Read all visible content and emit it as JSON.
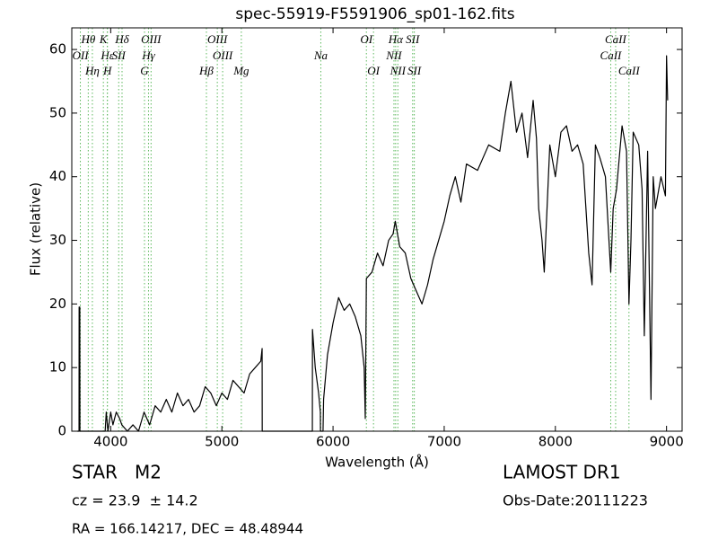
{
  "chart_data": {
    "type": "line",
    "title": "spec-55919-F5591906_sp01-162.fits",
    "x_label": "Wavelength (Å)",
    "y_label": "Flux (relative)",
    "xlim": [
      3650,
      9140
    ],
    "ylim": [
      0,
      63.4
    ],
    "xticks": [
      4000,
      5000,
      6000,
      7000,
      8000,
      9000
    ],
    "yticks": [
      0,
      10,
      20,
      30,
      40,
      50,
      60
    ],
    "series": [
      {
        "color": "#000000",
        "x": [
          3700,
          3715,
          3716,
          3722,
          3723,
          3950,
          3960,
          3975,
          4000,
          4020,
          4050,
          4080,
          4100,
          4150,
          4200,
          4250,
          4300,
          4350,
          4400,
          4450,
          4500,
          4550,
          4600,
          4650,
          4700,
          4750,
          4800,
          4850,
          4900,
          4950,
          5000,
          5050,
          5100,
          5150,
          5200,
          5250,
          5300,
          5350,
          5362,
          5363,
          5814,
          5815,
          5840,
          5870,
          5886,
          5887,
          5910,
          5915,
          5950,
          6000,
          6050,
          6100,
          6150,
          6200,
          6250,
          6280,
          6290,
          6300,
          6350,
          6400,
          6450,
          6500,
          6540,
          6560,
          6600,
          6650,
          6700,
          6750,
          6800,
          6850,
          6900,
          6950,
          7000,
          7050,
          7100,
          7150,
          7200,
          7300,
          7400,
          7500,
          7550,
          7600,
          7650,
          7700,
          7750,
          7800,
          7830,
          7850,
          7880,
          7900,
          7950,
          8000,
          8050,
          8100,
          8150,
          8200,
          8250,
          8300,
          8330,
          8360,
          8400,
          8450,
          8498,
          8520,
          8550,
          8600,
          8640,
          8662,
          8680,
          8700,
          8750,
          8780,
          8800,
          8830,
          8860,
          8880,
          8900,
          8950,
          8990,
          9000,
          9010
        ],
        "values": [
          0,
          0,
          19.5,
          19.5,
          0,
          0,
          3,
          0,
          3,
          1,
          3,
          2,
          1,
          0,
          1,
          0,
          3,
          1,
          4,
          3,
          5,
          3,
          6,
          4,
          5,
          3,
          4,
          7,
          6,
          4,
          6,
          5,
          8,
          7,
          6,
          9,
          10,
          11,
          13,
          0,
          0,
          16,
          10,
          6,
          3,
          0,
          0,
          5,
          12,
          17,
          21,
          19,
          20,
          18,
          15,
          10,
          2,
          24,
          25,
          28,
          26,
          30,
          31,
          33,
          29,
          28,
          24,
          22,
          20,
          23,
          27,
          30,
          33,
          37,
          40,
          36,
          42,
          41,
          45,
          44,
          50,
          55,
          47,
          50,
          43,
          52,
          46,
          35,
          30,
          25,
          45,
          40,
          47,
          48,
          44,
          45,
          42,
          28,
          23,
          45,
          43,
          40,
          25,
          35,
          38,
          48,
          44,
          20,
          30,
          47,
          45,
          38,
          15,
          44,
          5,
          40,
          35,
          40,
          37,
          59,
          52
        ]
      }
    ],
    "annotation_color": "#5cb85c",
    "annotations": [
      {
        "label": "Hθ",
        "x": 3798
      },
      {
        "label": "K",
        "x": 3934
      },
      {
        "label": "Hδ",
        "x": 4102
      },
      {
        "label": "OIII",
        "x": 4363
      },
      {
        "label": "OIII",
        "x": 4959
      },
      {
        "label": "OI",
        "x": 6300
      },
      {
        "label": "Hα",
        "x": 6563
      },
      {
        "label": "SII",
        "x": 6716
      },
      {
        "label": "CaII",
        "x": 8542
      },
      {
        "label": "OII",
        "x": 3727
      },
      {
        "label": "Hε",
        "x": 3970
      },
      {
        "label": "SII",
        "x": 4072
      },
      {
        "label": "Hγ",
        "x": 4340
      },
      {
        "label": "OIII",
        "x": 5007
      },
      {
        "label": "Na",
        "x": 5890
      },
      {
        "label": "NII",
        "x": 6548
      },
      {
        "label": "CaII",
        "x": 8498
      },
      {
        "label": "Hη",
        "x": 3835
      },
      {
        "label": "H",
        "x": 3970
      },
      {
        "label": "G",
        "x": 4304
      },
      {
        "label": "Hβ",
        "x": 4861
      },
      {
        "label": "Mg",
        "x": 5175
      },
      {
        "label": "OI",
        "x": 6364
      },
      {
        "label": "NII",
        "x": 6583
      },
      {
        "label": "SII",
        "x": 6731
      },
      {
        "label": "CaII",
        "x": 8662
      }
    ],
    "footer": {
      "class": "STAR   M2",
      "redshift": "cz = 23.9  ± 14.2",
      "coords": "RA = 166.14217, DEC = 48.48944",
      "survey": "LAMOST DR1",
      "obs_date": "Obs-Date:20111223"
    }
  }
}
